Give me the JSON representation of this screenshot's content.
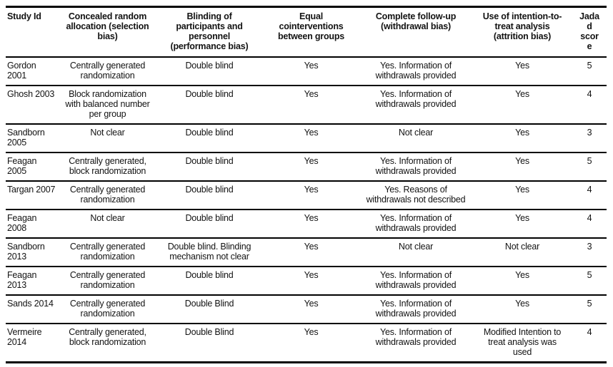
{
  "colors": {
    "background": "#ffffff",
    "text": "#131313",
    "rule": "#000000"
  },
  "table": {
    "columns": [
      {
        "label": "Study Id"
      },
      {
        "label": "Concealed random allocation (selection bias)"
      },
      {
        "label": "Blinding of participants and personnel (performance bias)"
      },
      {
        "label": "Equal cointerventions between groups"
      },
      {
        "label": "Complete follow-up (withdrawal bias)"
      },
      {
        "label": "Use of intention-to-treat analysis (attrition bias)"
      },
      {
        "label": "Jadad score"
      }
    ],
    "rows": [
      {
        "cells": [
          "Gordon 2001",
          "Centrally generated randomization",
          "Double blind",
          "Yes",
          "Yes. Information of withdrawals provided",
          "Yes",
          "5"
        ]
      },
      {
        "cells": [
          "Ghosh 2003",
          "Block randomization with balanced number per group",
          "Double blind",
          "Yes",
          "Yes. Information of withdrawals provided",
          "Yes",
          "4"
        ]
      },
      {
        "cells": [
          "Sandborn 2005",
          "Not clear",
          "Double blind",
          "Yes",
          "Not clear",
          "Yes",
          "3"
        ]
      },
      {
        "cells": [
          "Feagan 2005",
          "Centrally generated, block randomization",
          "Double blind",
          "Yes",
          "Yes. Information of withdrawals provided",
          "Yes",
          "5"
        ]
      },
      {
        "cells": [
          "Targan 2007",
          "Centrally generated randomization",
          "Double blind",
          "Yes",
          "Yes. Reasons of withdrawals not described",
          "Yes",
          "4"
        ]
      },
      {
        "cells": [
          "Feagan 2008",
          "Not clear",
          "Double blind",
          "Yes",
          "Yes. Information of withdrawals provided",
          "Yes",
          "4"
        ]
      },
      {
        "cells": [
          "Sandborn 2013",
          "Centrally generated randomization",
          "Double blind. Blinding mechanism not clear",
          "Yes",
          "Not clear",
          "Not clear",
          "3"
        ]
      },
      {
        "cells": [
          "Feagan 2013",
          "Centrally generated randomization",
          "Double blind",
          "Yes",
          "Yes. Information of withdrawals provided",
          "Yes",
          "5"
        ]
      },
      {
        "cells": [
          "Sands 2014",
          "Centrally generated randomization",
          "Double Blind",
          "Yes",
          "Yes. Information of withdrawals provided",
          "Yes",
          "5"
        ]
      },
      {
        "cells": [
          "Vermeire 2014",
          "Centrally generated, block randomization",
          "Double Blind",
          "Yes",
          "Yes. Information of withdrawals provided",
          "Modified Intention to treat analysis was used",
          "4"
        ]
      }
    ]
  }
}
